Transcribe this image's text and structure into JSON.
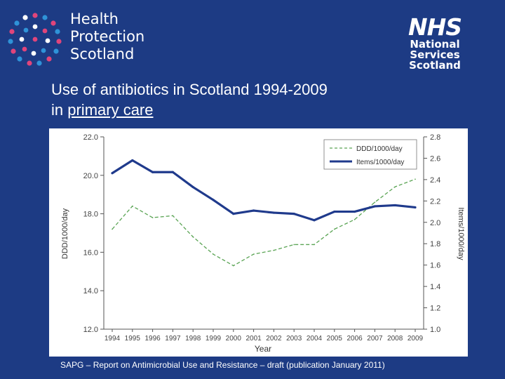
{
  "brand": {
    "org_name_lines": [
      "Health",
      "Protection",
      "Scotland"
    ],
    "nhs_mark": "NHS",
    "nhs_name_lines": [
      "National",
      "Services",
      "Scotland"
    ]
  },
  "slide": {
    "title_line1": "Use of antibiotics in Scotland 1994-2009",
    "title_line2_prefix": "in ",
    "title_line2_underlined": "primary care",
    "source_note": "SAPG – Report on Antimicrobial Use and Resistance – draft (publication January 2011)"
  },
  "colors": {
    "background": "#1d3b84",
    "ddd_series": "#5aa454",
    "items_series": "#1f3a8c",
    "axis": "#555555"
  },
  "chart_data": {
    "type": "line",
    "x": [
      "1994",
      "1995",
      "1996",
      "1997",
      "1998",
      "1999",
      "2000",
      "2001",
      "2002",
      "2003",
      "2004",
      "2005",
      "2006",
      "2007",
      "2008",
      "2009"
    ],
    "series": [
      {
        "name": "DDD/1000/day",
        "axis": "left",
        "style": "dashed",
        "values": [
          17.2,
          18.4,
          17.8,
          17.9,
          16.8,
          15.9,
          15.3,
          15.9,
          16.1,
          16.4,
          16.4,
          17.2,
          17.7,
          18.6,
          19.4,
          19.8
        ]
      },
      {
        "name": "Items/1000/day",
        "axis": "right",
        "style": "solid",
        "values": [
          2.46,
          2.58,
          2.47,
          2.47,
          2.33,
          2.21,
          2.08,
          2.11,
          2.09,
          2.08,
          2.02,
          2.1,
          2.1,
          2.15,
          2.16,
          2.14
        ]
      }
    ],
    "xlabel": "Year",
    "ylabel": "DDD/1000/day",
    "y2label": "Items/1000/day",
    "ylim": [
      12.0,
      22.0
    ],
    "y2lim": [
      1.0,
      2.8
    ],
    "yticks": [
      "12.0",
      "14.0",
      "16.0",
      "18.0",
      "20.0",
      "22.0"
    ],
    "y2ticks": [
      "1.0",
      "1.2",
      "1.4",
      "1.6",
      "1.8",
      "2.0",
      "2.2",
      "2.4",
      "2.6",
      "2.8"
    ],
    "legend_position": "top-right",
    "grid": false
  }
}
